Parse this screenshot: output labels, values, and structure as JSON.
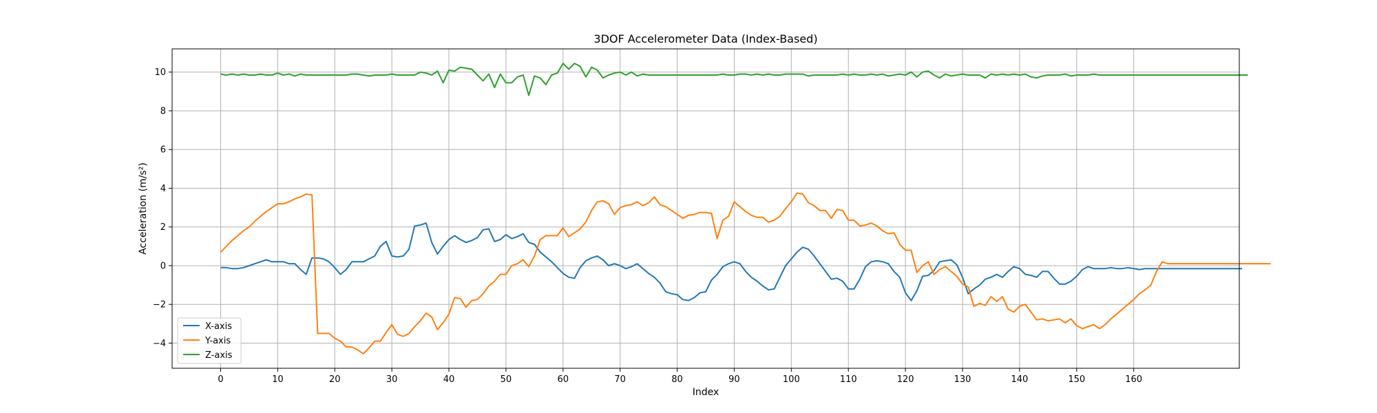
{
  "chart_data": {
    "type": "line",
    "title": "3DOF Accelerometer Data (Index-Based)",
    "xlabel": "Index",
    "ylabel": "Acceleration (m/s²)",
    "xlim": [
      -8.5,
      178.5
    ],
    "ylim": [
      -5.3,
      11.2
    ],
    "xticks": [
      0,
      10,
      20,
      30,
      40,
      50,
      60,
      70,
      80,
      90,
      100,
      110,
      120,
      130,
      140,
      150,
      160
    ],
    "yticks": [
      -4,
      -2,
      0,
      2,
      4,
      6,
      8,
      10
    ],
    "grid": true,
    "legend_position": "lower-left",
    "series": [
      {
        "name": "X-axis",
        "color": "#1f77b4",
        "values": [
          -0.1,
          -0.1,
          -0.15,
          -0.15,
          -0.1,
          0.0,
          0.1,
          0.2,
          0.3,
          0.2,
          0.2,
          0.2,
          0.1,
          0.1,
          -0.2,
          -0.45,
          0.4,
          0.4,
          0.35,
          0.2,
          -0.1,
          -0.45,
          -0.2,
          0.2,
          0.2,
          0.2,
          0.35,
          0.5,
          1.0,
          1.25,
          0.5,
          0.45,
          0.5,
          0.85,
          2.05,
          2.1,
          2.2,
          1.2,
          0.6,
          1.0,
          1.35,
          1.55,
          1.35,
          1.2,
          1.3,
          1.45,
          1.85,
          1.9,
          1.25,
          1.35,
          1.6,
          1.4,
          1.5,
          1.65,
          1.2,
          1.1,
          0.7,
          0.45,
          0.2,
          -0.1,
          -0.4,
          -0.6,
          -0.65,
          -0.1,
          0.25,
          0.4,
          0.5,
          0.3,
          0.0,
          0.1,
          0.0,
          -0.15,
          -0.05,
          0.1,
          -0.15,
          -0.4,
          -0.6,
          -0.9,
          -1.35,
          -1.45,
          -1.5,
          -1.75,
          -1.8,
          -1.65,
          -1.4,
          -1.35,
          -0.75,
          -0.45,
          -0.05,
          0.1,
          0.2,
          0.1,
          -0.3,
          -0.6,
          -0.8,
          -1.05,
          -1.25,
          -1.2,
          -0.6,
          0.0,
          0.35,
          0.7,
          0.95,
          0.85,
          0.5,
          0.1,
          -0.3,
          -0.7,
          -0.65,
          -0.8,
          -1.2,
          -1.2,
          -0.7,
          -0.05,
          0.2,
          0.25,
          0.2,
          0.1,
          -0.3,
          -0.6,
          -1.4,
          -1.8,
          -1.3,
          -0.55,
          -0.5,
          -0.25,
          0.2,
          0.25,
          0.3,
          0.05,
          -0.6,
          -1.45,
          -1.2,
          -1.0,
          -0.7,
          -0.6,
          -0.45,
          -0.6,
          -0.3,
          -0.05,
          -0.15,
          -0.45,
          -0.5,
          -0.6,
          -0.3,
          -0.3,
          -0.65,
          -0.95,
          -0.95,
          -0.8,
          -0.55,
          -0.2,
          -0.05,
          -0.15,
          -0.15,
          -0.15,
          -0.1,
          -0.15,
          -0.15,
          -0.1,
          -0.15,
          -0.2,
          -0.15,
          -0.15,
          -0.15,
          -0.15,
          -0.15,
          -0.15,
          -0.15,
          -0.15,
          -0.15,
          -0.15,
          -0.15,
          -0.15,
          -0.15,
          -0.15,
          -0.15,
          -0.15,
          -0.15,
          -0.15
        ]
      },
      {
        "name": "Y-axis",
        "color": "#ff7f0e",
        "values": [
          0.7,
          1.0,
          1.3,
          1.55,
          1.8,
          2.0,
          2.3,
          2.55,
          2.8,
          3.0,
          3.2,
          3.2,
          3.3,
          3.45,
          3.55,
          3.7,
          3.65,
          -3.5,
          -3.5,
          -3.5,
          -3.75,
          -3.9,
          -4.2,
          -4.2,
          -4.35,
          -4.55,
          -4.25,
          -3.9,
          -3.9,
          -3.45,
          -3.05,
          -3.55,
          -3.65,
          -3.5,
          -3.15,
          -2.85,
          -2.45,
          -2.65,
          -3.3,
          -2.95,
          -2.5,
          -1.65,
          -1.7,
          -2.15,
          -1.8,
          -1.75,
          -1.45,
          -1.05,
          -0.8,
          -0.45,
          -0.45,
          0.0,
          0.1,
          0.3,
          -0.05,
          0.5,
          1.35,
          1.55,
          1.55,
          1.55,
          1.95,
          1.5,
          1.7,
          1.9,
          2.25,
          2.85,
          3.3,
          3.35,
          3.2,
          2.65,
          3.0,
          3.1,
          3.15,
          3.3,
          3.1,
          3.25,
          3.55,
          3.15,
          3.05,
          2.85,
          2.65,
          2.45,
          2.6,
          2.65,
          2.75,
          2.75,
          2.7,
          1.4,
          2.35,
          2.55,
          3.3,
          3.05,
          2.8,
          2.6,
          2.5,
          2.5,
          2.25,
          2.35,
          2.55,
          2.95,
          3.3,
          3.75,
          3.7,
          3.25,
          3.1,
          2.85,
          2.85,
          2.45,
          2.9,
          2.85,
          2.35,
          2.35,
          2.05,
          2.1,
          2.2,
          2.05,
          1.8,
          1.65,
          1.7,
          1.1,
          0.8,
          0.8,
          -0.35,
          0.0,
          0.2,
          -0.45,
          -0.2,
          -0.05,
          -0.3,
          -0.55,
          -0.95,
          -1.1,
          -2.1,
          -1.95,
          -2.05,
          -1.6,
          -1.85,
          -1.6,
          -2.25,
          -2.4,
          -2.1,
          -2.0,
          -2.4,
          -2.8,
          -2.75,
          -2.85,
          -2.8,
          -2.75,
          -2.95,
          -2.75,
          -3.1,
          -3.25,
          -3.15,
          -3.05,
          -3.25,
          -3.05,
          -2.75,
          -2.5,
          -2.25,
          -2.0,
          -1.75,
          -1.45,
          -1.25,
          -1.0,
          -0.3,
          0.2,
          0.1,
          0.1,
          0.1,
          0.1,
          0.1,
          0.1,
          0.1,
          0.1,
          0.1,
          0.1,
          0.1,
          0.1,
          0.1,
          0.1,
          0.1,
          0.1,
          0.1,
          0.1,
          0.1
        ]
      },
      {
        "name": "Z-axis",
        "color": "#2ca02c",
        "values": [
          9.9,
          9.85,
          9.9,
          9.85,
          9.9,
          9.85,
          9.85,
          9.9,
          9.85,
          9.85,
          9.95,
          9.85,
          9.9,
          9.8,
          9.9,
          9.85,
          9.85,
          9.85,
          9.85,
          9.85,
          9.85,
          9.85,
          9.85,
          9.9,
          9.9,
          9.85,
          9.8,
          9.85,
          9.85,
          9.85,
          9.9,
          9.85,
          9.85,
          9.85,
          9.85,
          10.0,
          9.95,
          9.85,
          10.05,
          9.45,
          10.1,
          10.05,
          10.25,
          10.2,
          10.15,
          9.85,
          9.55,
          9.9,
          9.2,
          9.9,
          9.45,
          9.45,
          9.75,
          9.85,
          8.8,
          9.8,
          9.7,
          9.35,
          9.85,
          9.95,
          10.45,
          10.15,
          10.45,
          10.3,
          9.75,
          10.25,
          10.1,
          9.7,
          9.85,
          9.95,
          10.0,
          9.85,
          10.0,
          9.8,
          9.9,
          9.85,
          9.85,
          9.85,
          9.85,
          9.85,
          9.85,
          9.85,
          9.85,
          9.85,
          9.85,
          9.85,
          9.85,
          9.85,
          9.9,
          9.85,
          9.85,
          9.9,
          9.9,
          9.85,
          9.9,
          9.85,
          9.9,
          9.85,
          9.85,
          9.9,
          9.9,
          9.9,
          9.9,
          9.8,
          9.85,
          9.85,
          9.85,
          9.85,
          9.85,
          9.9,
          9.85,
          9.9,
          9.85,
          9.85,
          9.9,
          9.85,
          9.9,
          9.8,
          9.85,
          9.9,
          9.85,
          10.0,
          9.75,
          10.0,
          10.05,
          9.85,
          9.7,
          9.9,
          9.8,
          9.85,
          9.9,
          9.85,
          9.85,
          9.85,
          9.7,
          9.9,
          9.85,
          9.9,
          9.85,
          9.9,
          9.85,
          9.9,
          9.75,
          9.7,
          9.8,
          9.85,
          9.85,
          9.85,
          9.9,
          9.8,
          9.85,
          9.85,
          9.85,
          9.9,
          9.85,
          9.85,
          9.85,
          9.85,
          9.85,
          9.85,
          9.85,
          9.85,
          9.85,
          9.85,
          9.85,
          9.85,
          9.85,
          9.85,
          9.85,
          9.85,
          9.85,
          9.85,
          9.85,
          9.85,
          9.85,
          9.85,
          9.85,
          9.85,
          9.85,
          9.85,
          9.85
        ]
      }
    ]
  }
}
